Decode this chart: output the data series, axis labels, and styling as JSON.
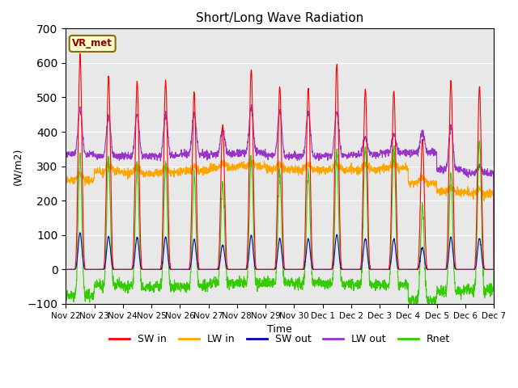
{
  "title": "Short/Long Wave Radiation",
  "xlabel": "Time",
  "ylabel": "(W/m2)",
  "ylim": [
    -100,
    700
  ],
  "yticks": [
    -100,
    0,
    100,
    200,
    300,
    400,
    500,
    600,
    700
  ],
  "annotation": "VR_met",
  "background_color": "#e8e8e8",
  "series": {
    "SW_in": {
      "color": "#ff0000",
      "label": "SW in",
      "lw": 0.8
    },
    "LW_in": {
      "color": "#ffa500",
      "label": "LW in",
      "lw": 0.8
    },
    "SW_out": {
      "color": "#0000bb",
      "label": "SW out",
      "lw": 0.8
    },
    "LW_out": {
      "color": "#9933cc",
      "label": "LW out",
      "lw": 0.8
    },
    "Rnet": {
      "color": "#33cc00",
      "label": "Rnet",
      "lw": 0.8
    }
  },
  "xtick_labels": [
    "Nov 22",
    "Nov 23",
    "Nov 24",
    "Nov 25",
    "Nov 26",
    "Nov 27",
    "Nov 28",
    "Nov 29",
    "Nov 30",
    "Dec 1",
    "Dec 2",
    "Dec 3",
    "Dec 4",
    "Dec 5",
    "Dec 6",
    "Dec 7"
  ],
  "n_days": 15,
  "pts_per_day": 144,
  "sw_in_peaks": [
    625,
    560,
    545,
    550,
    515,
    420,
    583,
    530,
    530,
    595,
    525,
    520,
    375,
    550,
    530
  ],
  "lw_in_base": [
    260,
    285,
    280,
    280,
    285,
    295,
    300,
    290,
    290,
    290,
    290,
    295,
    250,
    225,
    220
  ],
  "lw_out_base": [
    335,
    330,
    330,
    330,
    335,
    335,
    340,
    330,
    330,
    330,
    335,
    340,
    340,
    290,
    280
  ],
  "lw_out_peak": [
    465,
    445,
    450,
    450,
    450,
    410,
    470,
    460,
    460,
    460,
    380,
    390,
    400,
    415,
    300
  ]
}
